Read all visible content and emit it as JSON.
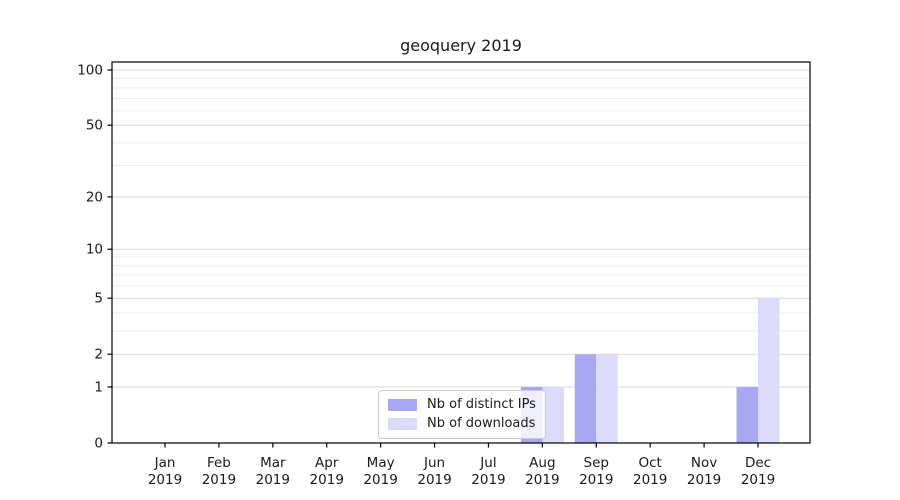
{
  "chart_data": {
    "type": "bar",
    "title": "geoquery 2019",
    "categories": [
      "Jan",
      "Feb",
      "Mar",
      "Apr",
      "May",
      "Jun",
      "Jul",
      "Aug",
      "Sep",
      "Oct",
      "Nov",
      "Dec"
    ],
    "year_label": "2019",
    "series": [
      {
        "name": "Nb of distinct IPs",
        "color": "#a8a8f2",
        "values": [
          0,
          0,
          0,
          0,
          0,
          0,
          0,
          1,
          2,
          0,
          0,
          1
        ]
      },
      {
        "name": "Nb of downloads",
        "color": "#dcdcfa",
        "values": [
          0,
          0,
          0,
          0,
          0,
          0,
          0,
          1,
          2,
          0,
          0,
          5
        ]
      }
    ],
    "yticks_major": [
      0,
      1,
      2,
      5,
      10,
      20,
      50,
      100
    ],
    "yticks_minor": [
      3,
      4,
      6,
      7,
      8,
      9,
      30,
      40,
      60,
      70,
      80,
      90
    ],
    "ylim": [
      0,
      100
    ],
    "yscale": "log1p",
    "grid": true,
    "legend_position": "lower center"
  },
  "colors": {
    "major_grid": "#d9d9d9",
    "minor_grid": "#ededed",
    "axis": "#000000",
    "text": "#1a1a1a",
    "background": "#ffffff"
  }
}
